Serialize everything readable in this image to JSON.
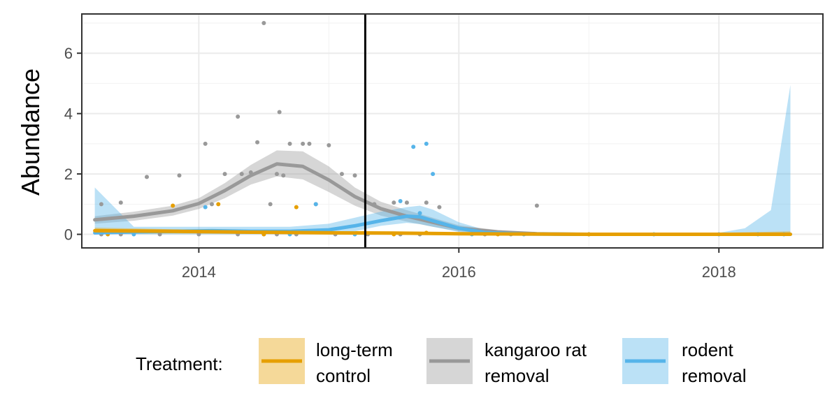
{
  "chart_data": {
    "type": "scatter",
    "xlabel": "",
    "ylabel": "Abundance",
    "xlim": [
      2013.1,
      2018.8
    ],
    "ylim": [
      -0.45,
      7.3
    ],
    "x_ticks": [
      2014,
      2016,
      2018
    ],
    "x_tick_labels": [
      "2014",
      "2016",
      "2018"
    ],
    "y_ticks": [
      0,
      2,
      4,
      6
    ],
    "y_tick_labels": [
      "0",
      "2",
      "4",
      "6"
    ],
    "grid": true,
    "vline_x": 2015.28,
    "legend": {
      "position": "bottom",
      "title": "Treatment:",
      "entries": [
        {
          "label_line1": "long-term",
          "label_line2": " control",
          "color": "#E69F00"
        },
        {
          "label_line1": "kangaroo rat",
          "label_line2": " removal",
          "color": "#999999"
        },
        {
          "label_line1": "rodent",
          "label_line2": " removal",
          "color": "#56B4E9"
        }
      ]
    },
    "series": [
      {
        "color": "#999999",
        "smooth": {
          "x": [
            2013.2,
            2013.5,
            2013.8,
            2014.0,
            2014.2,
            2014.4,
            2014.6,
            2014.8,
            2015.0,
            2015.2,
            2015.4,
            2015.6,
            2015.8,
            2016.0,
            2016.3,
            2016.6,
            2016.9
          ],
          "y": [
            0.48,
            0.6,
            0.78,
            1.02,
            1.45,
            1.95,
            2.33,
            2.25,
            1.8,
            1.25,
            0.85,
            0.6,
            0.4,
            0.2,
            0.08,
            0.02,
            0.0
          ],
          "lower": [
            0.35,
            0.45,
            0.62,
            0.84,
            1.2,
            1.65,
            1.92,
            1.82,
            1.4,
            0.95,
            0.62,
            0.42,
            0.25,
            0.1,
            0.01,
            0.0,
            0.0
          ],
          "upper": [
            0.6,
            0.75,
            0.95,
            1.2,
            1.7,
            2.3,
            2.78,
            2.75,
            2.25,
            1.55,
            1.08,
            0.8,
            0.55,
            0.3,
            0.14,
            0.05,
            0.02
          ]
        },
        "points": {
          "x": [
            2013.25,
            2013.4,
            2013.6,
            2013.85,
            2014.05,
            2014.1,
            2014.2,
            2014.3,
            2014.33,
            2014.4,
            2014.45,
            2014.5,
            2014.55,
            2014.6,
            2014.62,
            2014.65,
            2014.7,
            2014.8,
            2014.85,
            2014.9,
            2015.0,
            2015.1,
            2015.2,
            2015.35,
            2015.5,
            2015.6,
            2015.75,
            2015.85,
            2016.2,
            2016.6,
            2013.25,
            2013.7,
            2014.3,
            2014.5,
            2014.75,
            2015.05,
            2015.3,
            2015.55,
            2013.4,
            2014.0,
            2014.6,
            2015.7,
            2016.4,
            2017.0
          ],
          "y": [
            1.0,
            1.05,
            1.9,
            1.95,
            3.0,
            1.0,
            2.0,
            3.9,
            2.0,
            2.05,
            3.05,
            7.0,
            1.0,
            2.0,
            4.05,
            1.95,
            3.0,
            3.0,
            3.0,
            1.0,
            2.95,
            2.0,
            1.95,
            1.0,
            1.05,
            1.05,
            1.05,
            0.9,
            0.0,
            0.95,
            0.0,
            0.0,
            0.0,
            0.0,
            0.0,
            0.0,
            0.0,
            0.0,
            0.0,
            0.0,
            0.0,
            0.0,
            0.0,
            0.0
          ]
        }
      },
      {
        "color": "#56B4E9",
        "smooth": {
          "x": [
            2013.2,
            2013.5,
            2013.8,
            2014.1,
            2014.4,
            2014.7,
            2015.0,
            2015.2,
            2015.4,
            2015.6,
            2015.7,
            2015.8,
            2016.0,
            2016.2,
            2016.5,
            2017.0,
            2017.5,
            2018.0,
            2018.2,
            2018.4,
            2018.55
          ],
          "y": [
            0.05,
            0.08,
            0.1,
            0.12,
            0.1,
            0.1,
            0.15,
            0.28,
            0.45,
            0.6,
            0.58,
            0.45,
            0.2,
            0.06,
            0.01,
            0.0,
            0.0,
            0.0,
            0.0,
            0.0,
            0.0
          ],
          "lower": [
            0.0,
            0.0,
            0.0,
            0.0,
            0.0,
            0.0,
            0.0,
            0.1,
            0.28,
            0.38,
            0.34,
            0.25,
            0.08,
            0.0,
            0.0,
            0.0,
            0.0,
            0.0,
            0.0,
            0.0,
            0.0
          ],
          "upper": [
            1.55,
            0.25,
            0.25,
            0.25,
            0.25,
            0.25,
            0.35,
            0.55,
            0.75,
            0.9,
            0.95,
            0.82,
            0.4,
            0.15,
            0.05,
            0.02,
            0.02,
            0.05,
            0.2,
            0.8,
            4.95
          ]
        },
        "points": {
          "x": [
            2013.3,
            2014.05,
            2014.9,
            2015.55,
            2015.65,
            2015.75,
            2015.8,
            2015.7,
            2013.5,
            2014.7,
            2015.2,
            2016.1,
            2016.5,
            2017.0,
            2017.5,
            2018.0,
            2018.3,
            2018.5
          ],
          "y": [
            0.1,
            0.9,
            1.0,
            1.1,
            2.9,
            3.0,
            2.0,
            0.7,
            0.0,
            0.0,
            0.0,
            0.0,
            0.0,
            0.0,
            0.0,
            0.0,
            0.0,
            0.0
          ]
        }
      },
      {
        "color": "#E69F00",
        "smooth": {
          "x": [
            2013.2,
            2013.8,
            2014.4,
            2015.0,
            2015.5,
            2016.0,
            2016.5,
            2017.0,
            2017.5,
            2018.0,
            2018.55
          ],
          "y": [
            0.12,
            0.1,
            0.07,
            0.05,
            0.04,
            0.02,
            0.01,
            0.0,
            0.0,
            0.0,
            0.0
          ],
          "lower": [
            0.02,
            0.03,
            0.02,
            0.0,
            0.0,
            0.0,
            0.0,
            0.0,
            0.0,
            0.0,
            0.0
          ],
          "upper": [
            0.22,
            0.17,
            0.12,
            0.1,
            0.09,
            0.06,
            0.04,
            0.03,
            0.03,
            0.05,
            0.1
          ]
        },
        "points": {
          "x": [
            2013.8,
            2014.15,
            2014.75,
            2015.75,
            2013.3,
            2014.5,
            2015.5,
            2016.3,
            2017.0
          ],
          "y": [
            0.95,
            1.0,
            0.9,
            0.05,
            0.0,
            0.0,
            0.0,
            0.0,
            0.0
          ]
        }
      }
    ]
  }
}
